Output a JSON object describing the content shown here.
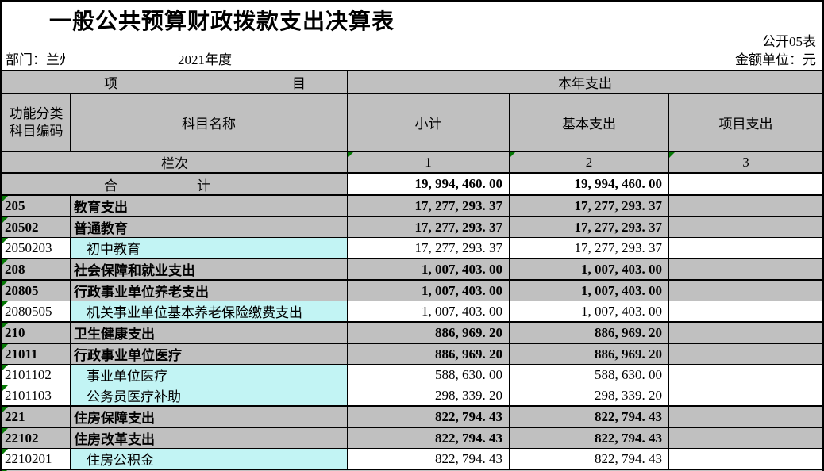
{
  "sheet": {
    "title": "一般公共预算财政拨款支出决算表",
    "form_code": "公开05表",
    "department_label": "部门：",
    "department_value": "兰州",
    "year": "2021年度",
    "unit_label": "金额单位：元"
  },
  "table": {
    "header": {
      "project_label_left": "项",
      "project_label_right": "目",
      "current_year_expenditure": "本年支出",
      "code_label_line1": "功能分类",
      "code_label_line2": "科目编码",
      "subject_name_label": "科目名称",
      "subtotal_label": "小计",
      "basic_label": "基本支出",
      "project_exp_label": "项目支出",
      "rank_label": "栏次",
      "col_numbers": [
        "1",
        "2",
        "3"
      ]
    },
    "total_row": {
      "label_left": "合",
      "label_right": "计",
      "subtotal": "19, 994, 460. 00",
      "basic": "19, 994, 460. 00",
      "project": ""
    },
    "rows": [
      {
        "type": "section",
        "code": "205",
        "name": "教育支出",
        "subtotal": "17, 277, 293. 37",
        "basic": "17, 277, 293. 37",
        "project": ""
      },
      {
        "type": "section",
        "code": "20502",
        "name": "普通教育",
        "subtotal": "17, 277, 293. 37",
        "basic": "17, 277, 293. 37",
        "project": ""
      },
      {
        "type": "detail",
        "code": "2050203",
        "name": "初中教育",
        "subtotal": "17, 277, 293. 37",
        "basic": "17, 277, 293. 37",
        "project": ""
      },
      {
        "type": "section",
        "code": "208",
        "name": "社会保障和就业支出",
        "subtotal": "1, 007, 403. 00",
        "basic": "1, 007, 403. 00",
        "project": ""
      },
      {
        "type": "section",
        "code": "20805",
        "name": "行政事业单位养老支出",
        "subtotal": "1, 007, 403. 00",
        "basic": "1, 007, 403. 00",
        "project": ""
      },
      {
        "type": "detail",
        "code": "2080505",
        "name": "机关事业单位基本养老保险缴费支出",
        "subtotal": "1, 007, 403. 00",
        "basic": "1, 007, 403. 00",
        "project": ""
      },
      {
        "type": "section",
        "code": "210",
        "name": "卫生健康支出",
        "subtotal": "886, 969. 20",
        "basic": "886, 969. 20",
        "project": ""
      },
      {
        "type": "section",
        "code": "21011",
        "name": "行政事业单位医疗",
        "subtotal": "886, 969. 20",
        "basic": "886, 969. 20",
        "project": ""
      },
      {
        "type": "detail",
        "code": "2101102",
        "name": "事业单位医疗",
        "subtotal": "588, 630. 00",
        "basic": "588, 630. 00",
        "project": ""
      },
      {
        "type": "detail",
        "code": "2101103",
        "name": "公务员医疗补助",
        "subtotal": "298, 339. 20",
        "basic": "298, 339. 20",
        "project": ""
      },
      {
        "type": "section",
        "code": "221",
        "name": "住房保障支出",
        "subtotal": "822, 794. 43",
        "basic": "822, 794. 43",
        "project": ""
      },
      {
        "type": "section",
        "code": "22102",
        "name": "住房改革支出",
        "subtotal": "822, 794. 43",
        "basic": "822, 794. 43",
        "project": ""
      },
      {
        "type": "detail",
        "code": "2210201",
        "name": "住房公积金",
        "subtotal": "822, 794. 43",
        "basic": "822, 794. 43",
        "project": ""
      }
    ]
  },
  "colors": {
    "section_bg": "#c0c0c0",
    "detail_name_bg": "#c2f4f4",
    "indicator_green": "#047804"
  }
}
